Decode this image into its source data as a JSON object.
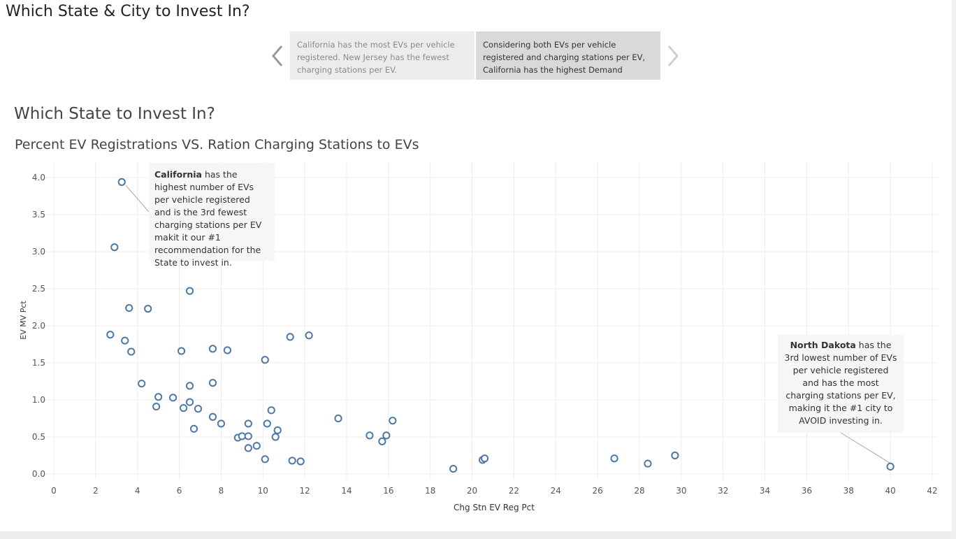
{
  "story": {
    "title": "Which State & City to Invest In?",
    "points": [
      "California has the most EVs per vehicle registered.  New Jersey has the fewest charging stations per EV.",
      "Considering both EVs per vehicle registered and charging stations per EV, California has the highest Demand"
    ],
    "active_point": 1
  },
  "dashboard": {
    "title": "Which State to Invest In?"
  },
  "colors": {
    "marker": "#4e79a7",
    "grid": "#ececec",
    "tooltip_bg": "#f6f6f6"
  },
  "annotations": {
    "california": {
      "bold": "California",
      "text": " has the highest number of EVs per vehicle registered and is the 3rd fewest charging stations per EV makit it our #1 recommendation for the State to invest in."
    },
    "north_dakota": {
      "bold": "North Dakota",
      "text": " has the 3rd lowest number of EVs per vehicle registered and has the most charging stations per EV, making it the #1 city to AVOID investing in."
    }
  },
  "chart_data": {
    "type": "scatter",
    "title": "Percent EV Registrations VS. Ration Charging Stations to EVs",
    "xlabel": "Chg Stn EV Reg Pct",
    "ylabel": "EV MV Pct",
    "xlim": [
      0,
      42
    ],
    "ylim": [
      0,
      4.2
    ],
    "xticks": [
      "0",
      "2",
      "4",
      "6",
      "8",
      "10",
      "12",
      "14",
      "16",
      "18",
      "20",
      "22",
      "24",
      "26",
      "28",
      "30",
      "32",
      "34",
      "36",
      "38",
      "40",
      "42"
    ],
    "yticks": [
      "0.0",
      "0.5",
      "1.0",
      "1.5",
      "2.0",
      "2.5",
      "3.0",
      "3.5",
      "4.0"
    ],
    "grid": true,
    "points": [
      [
        3.25,
        3.94
      ],
      [
        2.9,
        3.06
      ],
      [
        3.6,
        2.24
      ],
      [
        4.5,
        2.23
      ],
      [
        6.5,
        2.47
      ],
      [
        2.7,
        1.88
      ],
      [
        3.4,
        1.8
      ],
      [
        3.7,
        1.65
      ],
      [
        6.1,
        1.66
      ],
      [
        7.6,
        1.69
      ],
      [
        8.3,
        1.67
      ],
      [
        11.3,
        1.85
      ],
      [
        12.2,
        1.87
      ],
      [
        10.1,
        1.54
      ],
      [
        4.2,
        1.22
      ],
      [
        6.5,
        1.19
      ],
      [
        7.6,
        1.23
      ],
      [
        5.0,
        1.04
      ],
      [
        5.7,
        1.03
      ],
      [
        4.9,
        0.91
      ],
      [
        6.2,
        0.89
      ],
      [
        6.5,
        0.97
      ],
      [
        6.9,
        0.88
      ],
      [
        7.6,
        0.77
      ],
      [
        8.0,
        0.68
      ],
      [
        6.7,
        0.61
      ],
      [
        8.8,
        0.49
      ],
      [
        9.0,
        0.51
      ],
      [
        9.3,
        0.68
      ],
      [
        9.3,
        0.51
      ],
      [
        9.3,
        0.35
      ],
      [
        9.7,
        0.38
      ],
      [
        10.1,
        0.2
      ],
      [
        10.2,
        0.68
      ],
      [
        10.4,
        0.86
      ],
      [
        10.6,
        0.5
      ],
      [
        10.7,
        0.59
      ],
      [
        11.4,
        0.18
      ],
      [
        11.8,
        0.17
      ],
      [
        13.6,
        0.75
      ],
      [
        15.1,
        0.52
      ],
      [
        15.7,
        0.44
      ],
      [
        15.9,
        0.52
      ],
      [
        16.2,
        0.72
      ],
      [
        19.1,
        0.07
      ],
      [
        20.5,
        0.19
      ],
      [
        20.6,
        0.21
      ],
      [
        26.8,
        0.21
      ],
      [
        28.4,
        0.14
      ],
      [
        29.7,
        0.25
      ],
      [
        40.0,
        0.1
      ]
    ]
  }
}
